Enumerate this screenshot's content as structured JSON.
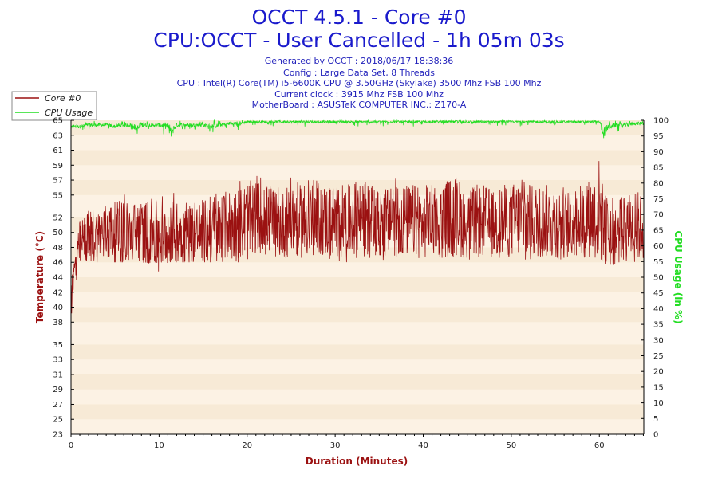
{
  "chart_data": {
    "type": "line",
    "title": "OCCT 4.5.1 - Core #0",
    "subtitle": "CPU:OCCT - User Cancelled - 1h 05m 03s",
    "info_lines": [
      "Generated by OCCT : 2018/06/17 18:38:36",
      "Config : Large Data Set, 8 Threads",
      "CPU : Intel(R) Core(TM) i5-6600K CPU @ 3.50GHz (Skylake) 3500 Mhz FSB 100 Mhz",
      "Current clock : 3915 Mhz FSB 100 Mhz",
      "MotherBoard : ASUSTeK COMPUTER INC.: Z170-A"
    ],
    "xlabel": "Duration (Minutes)",
    "ylabel": "Temperature (°C)",
    "y2label": "CPU Usage (in %)",
    "xlim": [
      0,
      65.05
    ],
    "ylim": [
      23,
      65
    ],
    "y2lim": [
      0,
      100
    ],
    "x_ticks": [
      0,
      10,
      20,
      30,
      40,
      50,
      60
    ],
    "y_ticks": [
      23,
      25,
      27,
      29,
      31,
      33,
      35,
      38,
      40,
      42,
      44,
      46,
      48,
      50,
      52,
      55,
      57,
      59,
      61,
      63,
      65
    ],
    "y2_ticks": [
      0,
      5,
      10,
      15,
      20,
      25,
      30,
      35,
      40,
      45,
      50,
      55,
      60,
      65,
      70,
      75,
      80,
      85,
      90,
      95,
      100
    ],
    "legend": {
      "position": "top-left",
      "entries": [
        "Core #0",
        "CPU Usage"
      ]
    },
    "grid": false,
    "colors": {
      "core": "#9b1111",
      "usage": "#22dd22",
      "plot_bg": "#fcf2e4",
      "title": "#1a1acc"
    },
    "series": [
      {
        "name": "Core #0",
        "axis": "left",
        "x": [
          0,
          0.2,
          0.4,
          0.6,
          0.8,
          1,
          1.5,
          2,
          3,
          4,
          5,
          6,
          7,
          8,
          9,
          10,
          10.5,
          11,
          12,
          13,
          14,
          15,
          16,
          17,
          18,
          19,
          20,
          21,
          22,
          23,
          24,
          25,
          26,
          27,
          28,
          29,
          30,
          31,
          32,
          33,
          34,
          35,
          36,
          37,
          38,
          39,
          40,
          41,
          42,
          43,
          44,
          45,
          46,
          47,
          48,
          49,
          50,
          51,
          52,
          53,
          54,
          55,
          56,
          57,
          58,
          59,
          60,
          60.5,
          61,
          62,
          63,
          64,
          65
        ],
        "low": [
          38,
          40,
          42,
          43,
          44,
          45,
          46,
          46,
          46,
          46,
          46,
          46,
          46,
          46,
          45,
          44,
          45,
          46,
          46,
          46,
          46,
          46,
          46,
          46,
          46,
          46,
          46,
          47,
          47,
          46,
          46,
          46,
          46,
          46,
          47,
          46,
          46,
          46,
          46,
          46,
          46,
          46,
          46,
          46,
          46,
          46,
          46,
          46,
          46,
          46,
          46,
          46,
          46,
          46,
          46,
          46,
          46,
          46,
          46,
          46,
          46,
          46,
          46,
          46,
          46,
          46,
          46,
          45,
          45,
          46,
          46,
          46,
          46
        ],
        "high": [
          44,
          46,
          48,
          49,
          50,
          52,
          53,
          54,
          54,
          55,
          55,
          56,
          55,
          55,
          55,
          55,
          55,
          56,
          55,
          56,
          55,
          56,
          56,
          56,
          57,
          57,
          58,
          58,
          57,
          57,
          56,
          58,
          57,
          58,
          58,
          57,
          57,
          57,
          57,
          58,
          57,
          56,
          57,
          58,
          57,
          57,
          56,
          57,
          57,
          58,
          58,
          56,
          57,
          57,
          56,
          57,
          57,
          58,
          57,
          57,
          57,
          57,
          56,
          57,
          57,
          58,
          62,
          56,
          56,
          56,
          56,
          57,
          56
        ],
        "mean": [
          41,
          43,
          45,
          46,
          47,
          48.5,
          49,
          49.5,
          49.5,
          50,
          50,
          50,
          50,
          50,
          50,
          49.5,
          49.5,
          50,
          50,
          50,
          50,
          50,
          50,
          50.5,
          51,
          51,
          51.5,
          52,
          52,
          51.5,
          51,
          52,
          51.5,
          52,
          52,
          51.5,
          51.5,
          51.5,
          51.5,
          52,
          51.5,
          51,
          51.5,
          52,
          51.5,
          51.5,
          51,
          51.5,
          51.5,
          52,
          52,
          51,
          51.5,
          51.5,
          51,
          51.5,
          51.5,
          52,
          51.5,
          51.5,
          51.5,
          51.5,
          51,
          51.5,
          51.5,
          52,
          53,
          50.5,
          50,
          50,
          50.5,
          51,
          50.5
        ]
      },
      {
        "name": "CPU Usage",
        "axis": "right",
        "x": [
          0,
          0.2,
          0.5,
          1,
          2,
          3,
          4,
          5,
          6,
          7,
          7.5,
          8,
          9,
          10,
          11,
          11.3,
          12,
          13,
          14,
          15,
          16,
          17,
          18,
          19,
          20,
          25,
          30,
          35,
          40,
          45,
          50,
          55,
          58,
          59,
          60,
          60.5,
          61,
          62,
          63,
          64,
          65
        ],
        "low": [
          93,
          95,
          96,
          96,
          97,
          97,
          97,
          96,
          97,
          97,
          91,
          96,
          97,
          97,
          93,
          89,
          96,
          97,
          97,
          97,
          96,
          97,
          97,
          96,
          98,
          98,
          98,
          98,
          98,
          98,
          98,
          98,
          98,
          98,
          98,
          89,
          95,
          96,
          96,
          97,
          97
        ],
        "high": [
          99,
          99,
          99,
          99,
          100,
          100,
          100,
          99,
          100,
          100,
          99,
          100,
          100,
          100,
          99,
          99,
          100,
          100,
          100,
          100,
          100,
          100,
          100,
          100,
          100,
          100,
          100,
          100,
          100,
          100,
          100,
          100,
          100,
          100,
          100,
          99,
          100,
          100,
          100,
          100,
          100
        ],
        "mean": [
          97,
          98,
          98,
          98,
          98.5,
          98.5,
          98.5,
          98,
          98.5,
          98.5,
          97,
          98.5,
          98.5,
          98.5,
          98,
          96,
          98.5,
          98.5,
          98.5,
          98.5,
          98,
          98.5,
          99,
          99,
          99.5,
          99.5,
          99.5,
          99.5,
          99.5,
          99.5,
          99.5,
          99.5,
          99.5,
          99.5,
          99.5,
          96,
          98,
          98.5,
          98.5,
          99,
          99
        ]
      }
    ]
  }
}
